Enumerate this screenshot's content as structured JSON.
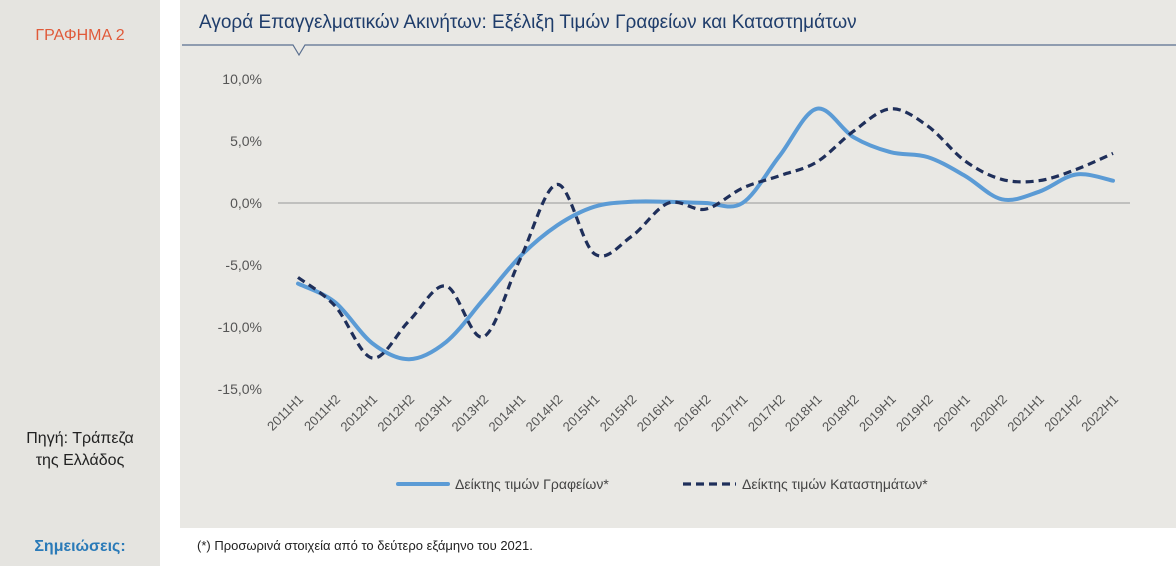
{
  "header": {
    "chart_label": "ΓΡΑΦΗΜΑ 2",
    "title": "Αγορά Επαγγελματικών Ακινήτων: Εξέλιξη Τιμών Γραφείων και Καταστημάτων"
  },
  "source": {
    "line1": "Πηγή: Τράπεζα",
    "line2": "της Ελλάδος"
  },
  "notes": {
    "label": "Σημειώσεις:",
    "text": "(*) Προσωρινά στοιχεία από το δεύτερο εξάμηνο του 2021."
  },
  "colors": {
    "offices": "#5b9bd5",
    "shops": "#1f2f5a",
    "accent_title": "#1f3d6b",
    "chart_label": "#e05a3a",
    "notes_label": "#2a7ab8"
  },
  "chart_data": {
    "type": "line",
    "categories": [
      "2011H1",
      "2011H2",
      "2012H1",
      "2012H2",
      "2013H1",
      "2013H2",
      "2014H1",
      "2014H2",
      "2015H1",
      "2015H2",
      "2016H1",
      "2016H2",
      "2017H1",
      "2017H2",
      "2018H1",
      "2018H2",
      "2019H1",
      "2019H2",
      "2020H1",
      "2020H2",
      "2021H1",
      "2021H2",
      "2022H1"
    ],
    "ylim": [
      -15,
      10
    ],
    "yticks": [
      10,
      5,
      0,
      -5,
      -10,
      -15
    ],
    "ytick_labels": [
      "10,0%",
      "5,0%",
      "0,0%",
      "-5,0%",
      "-10,0%",
      "-15,0%"
    ],
    "grid": false,
    "legend_position": "bottom",
    "series": [
      {
        "name": "Δείκτης τιμών Γραφείων*",
        "style": "solid",
        "values": [
          -6.5,
          -8,
          -11.3,
          -12.6,
          -11.2,
          -7.8,
          -4.3,
          -1.8,
          -0.3,
          0.1,
          0.1,
          0,
          0,
          3.8,
          7.6,
          5.3,
          4.1,
          3.7,
          2.2,
          0.3,
          0.9,
          2.3,
          1.8
        ]
      },
      {
        "name": "Δείκτης τιμών Καταστημάτων*",
        "style": "dashed",
        "values": [
          -6,
          -8.3,
          -12.5,
          -9.5,
          -6.7,
          -10.8,
          -4.5,
          1.5,
          -4.1,
          -2.7,
          0,
          -0.5,
          1.2,
          2.2,
          3.3,
          5.8,
          7.6,
          6.2,
          3.4,
          1.9,
          1.8,
          2.7,
          4
        ]
      }
    ]
  }
}
